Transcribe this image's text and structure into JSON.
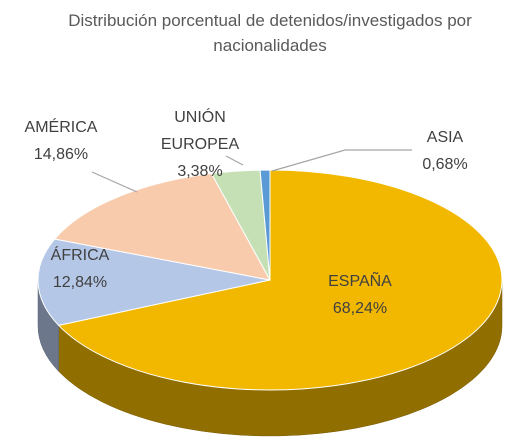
{
  "chart_data": {
    "type": "pie",
    "title": "Distribución porcentual de detenidos/investigados por nacionalidades",
    "categories": [
      "ESPAÑA",
      "ÁFRICA",
      "AMÉRICA",
      "UNIÓN EUROPEA",
      "ASIA"
    ],
    "values": [
      68.24,
      12.84,
      14.86,
      3.38,
      0.68
    ],
    "value_labels": [
      "68,24%",
      "12,84%",
      "14,86%",
      "3,38%",
      "0,68%"
    ],
    "colors": [
      "#f2b800",
      "#b4c7e7",
      "#f8cbad",
      "#c5e0b4",
      "#5b9bd5"
    ]
  }
}
